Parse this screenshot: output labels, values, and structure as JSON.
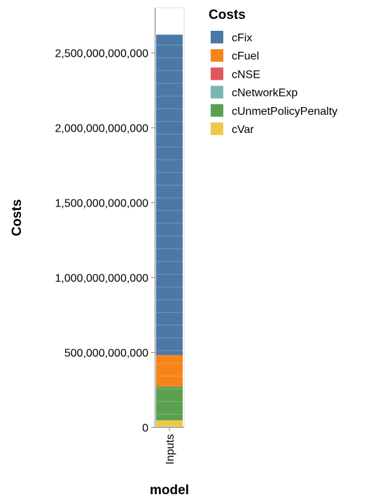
{
  "chart_data": {
    "type": "bar",
    "stacked": true,
    "categories": [
      "Inputs"
    ],
    "xlabel": "model",
    "ylabel": "Costs",
    "ylim": [
      0,
      2800000000000
    ],
    "yticks": [
      {
        "value": 0,
        "label": "0"
      },
      {
        "value": 500000000000,
        "label": "500,000,000,000"
      },
      {
        "value": 1000000000000,
        "label": "1,000,000,000,000"
      },
      {
        "value": 1500000000000,
        "label": "1,500,000,000,000"
      },
      {
        "value": 2000000000000,
        "label": "2,000,000,000,000"
      },
      {
        "value": 2500000000000,
        "label": "2,500,000,000,000"
      }
    ],
    "grid": true,
    "legend": {
      "title": "Costs",
      "position": "top-right"
    },
    "series": [
      {
        "name": "cVar",
        "color": "#edc948",
        "values": [
          45000000000
        ]
      },
      {
        "name": "cUnmetPolicyPenalty",
        "color": "#59a14f",
        "values": [
          225000000000
        ]
      },
      {
        "name": "cNetworkExp",
        "color": "#76b7b2",
        "values": [
          0
        ]
      },
      {
        "name": "cNSE",
        "color": "#e15759",
        "values": [
          0
        ]
      },
      {
        "name": "cFuel",
        "color": "#f58518",
        "values": [
          210000000000
        ]
      },
      {
        "name": "cFix",
        "color": "#4c78a8",
        "values": [
          2140000000000
        ]
      }
    ],
    "legend_order": [
      "cFix",
      "cFuel",
      "cNSE",
      "cNetworkExp",
      "cUnmetPolicyPenalty",
      "cVar"
    ]
  }
}
